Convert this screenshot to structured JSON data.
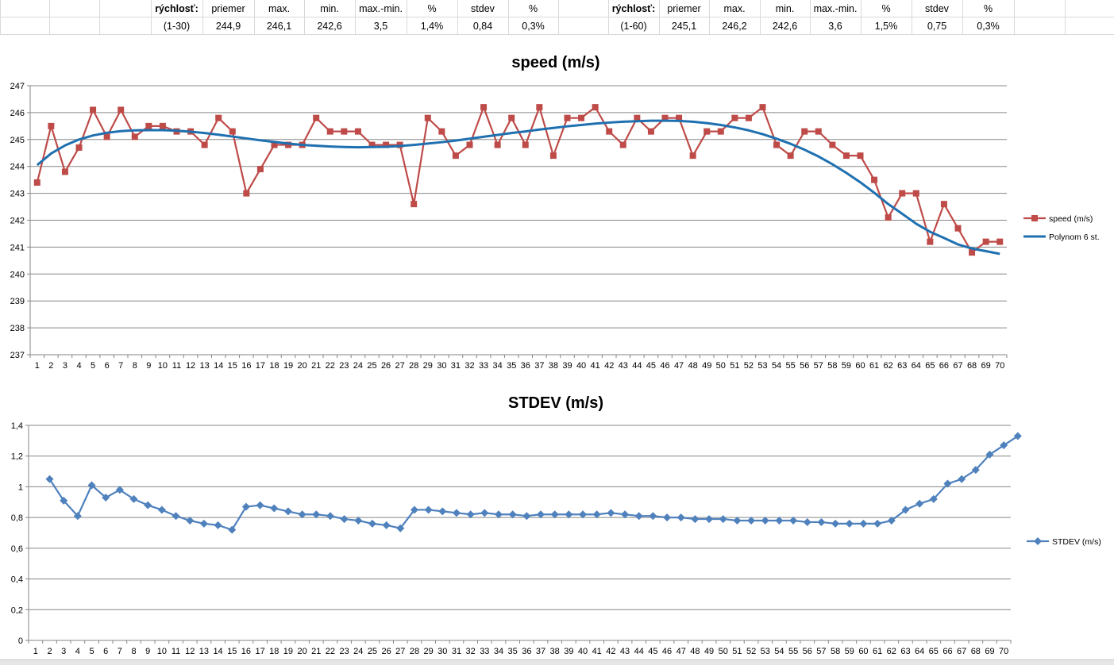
{
  "sheet_rows": [
    [
      "",
      "",
      "",
      "rýchlosť:",
      "priemer",
      "max.",
      "min.",
      "max.-min.",
      "%",
      "stdev",
      "%",
      "",
      "rýchlosť:",
      "priemer",
      "max.",
      "min.",
      "max.-min.",
      "%",
      "stdev",
      "%",
      "",
      ""
    ],
    [
      "",
      "",
      "",
      "(1-30)",
      "244,9",
      "246,1",
      "242,6",
      "3,5",
      "1,4%",
      "0,84",
      "0,3%",
      "",
      "(1-60)",
      "245,1",
      "246,2",
      "242,6",
      "3,6",
      "1,5%",
      "0,75",
      "0,3%",
      "",
      ""
    ]
  ],
  "bold_cells": [
    "rýchlosť:"
  ],
  "chart_data": [
    {
      "type": "line",
      "title": "speed (m/s)",
      "xlabel": "",
      "ylabel": "",
      "categories": [
        1,
        2,
        3,
        4,
        5,
        6,
        7,
        8,
        9,
        10,
        11,
        12,
        13,
        14,
        15,
        16,
        17,
        18,
        19,
        20,
        21,
        22,
        23,
        24,
        25,
        26,
        27,
        28,
        29,
        30,
        31,
        32,
        33,
        34,
        35,
        36,
        37,
        38,
        39,
        40,
        41,
        42,
        43,
        44,
        45,
        46,
        47,
        48,
        49,
        50,
        51,
        52,
        53,
        54,
        55,
        56,
        57,
        58,
        59,
        60,
        61,
        62,
        63,
        64,
        65,
        66,
        67,
        68,
        69,
        70
      ],
      "ylim": [
        237,
        247
      ],
      "yticks": [
        237,
        238,
        239,
        240,
        241,
        242,
        243,
        244,
        245,
        246,
        247
      ],
      "grid": true,
      "legend_position": "right",
      "series": [
        {
          "name": "speed (m/s)",
          "color": "#be4b48",
          "marker": "square",
          "values": [
            243.4,
            245.5,
            243.8,
            244.7,
            246.1,
            245.1,
            246.1,
            245.1,
            245.5,
            245.5,
            245.3,
            245.3,
            244.8,
            245.8,
            245.3,
            243.0,
            243.9,
            244.8,
            244.8,
            244.8,
            245.8,
            245.3,
            245.3,
            245.3,
            244.8,
            244.8,
            244.8,
            242.6,
            245.8,
            245.3,
            244.4,
            244.8,
            246.2,
            244.8,
            245.8,
            244.8,
            246.2,
            244.4,
            245.8,
            245.8,
            246.2,
            245.3,
            244.8,
            245.8,
            245.3,
            245.8,
            245.8,
            244.4,
            245.3,
            245.3,
            245.8,
            245.8,
            246.2,
            244.8,
            244.4,
            245.3,
            245.3,
            244.8,
            244.4,
            244.4,
            243.5,
            242.1,
            243.0,
            243.0,
            241.2,
            242.6,
            241.7,
            240.8,
            241.2,
            241.2
          ]
        },
        {
          "name": "Polynom 6 st.",
          "color": "#1f70b0",
          "marker": "none",
          "values": [
            244.05,
            244.48,
            244.78,
            245.0,
            245.15,
            245.25,
            245.31,
            245.34,
            245.35,
            245.35,
            245.33,
            245.29,
            245.24,
            245.18,
            245.11,
            245.04,
            244.97,
            244.91,
            244.85,
            244.8,
            244.77,
            244.74,
            244.72,
            244.71,
            244.72,
            244.73,
            244.76,
            244.8,
            244.85,
            244.9,
            244.96,
            245.03,
            245.1,
            245.17,
            245.24,
            245.3,
            245.37,
            245.43,
            245.49,
            245.54,
            245.59,
            245.63,
            245.66,
            245.68,
            245.7,
            245.7,
            245.69,
            245.66,
            245.61,
            245.54,
            245.45,
            245.34,
            245.2,
            245.03,
            244.84,
            244.62,
            244.37,
            244.08,
            243.76,
            243.41,
            243.02,
            242.6,
            242.24,
            241.87,
            241.57,
            241.34,
            241.1,
            240.95,
            240.85,
            240.75
          ]
        }
      ]
    },
    {
      "type": "line",
      "title": "STDEV (m/s)",
      "xlabel": "",
      "ylabel": "",
      "categories": [
        1,
        2,
        3,
        4,
        5,
        6,
        7,
        8,
        9,
        10,
        11,
        12,
        13,
        14,
        15,
        16,
        17,
        18,
        19,
        20,
        21,
        22,
        23,
        24,
        25,
        26,
        27,
        28,
        29,
        30,
        31,
        32,
        33,
        34,
        35,
        36,
        37,
        38,
        39,
        40,
        41,
        42,
        43,
        44,
        45,
        46,
        47,
        48,
        49,
        50,
        51,
        52,
        53,
        54,
        55,
        56,
        57,
        58,
        59,
        60,
        61,
        62,
        63,
        64,
        65,
        66,
        67,
        68,
        69,
        70
      ],
      "ylim": [
        0,
        1.4
      ],
      "yticks": [
        "0",
        "0,2",
        "0,4",
        "0,6",
        "0,8",
        "1",
        "1,2",
        "1,4"
      ],
      "grid": true,
      "legend_position": "right",
      "series": [
        {
          "name": "STDEV (m/s)",
          "color": "#4f81bd",
          "marker": "diamond",
          "start_index": 2,
          "values": [
            1.05,
            0.91,
            0.81,
            1.01,
            0.93,
            0.98,
            0.92,
            0.88,
            0.85,
            0.81,
            0.78,
            0.76,
            0.75,
            0.72,
            0.87,
            0.88,
            0.86,
            0.84,
            0.82,
            0.82,
            0.81,
            0.79,
            0.78,
            0.76,
            0.75,
            0.73,
            0.85,
            0.85,
            0.84,
            0.83,
            0.82,
            0.83,
            0.82,
            0.82,
            0.81,
            0.82,
            0.82,
            0.82,
            0.82,
            0.82,
            0.83,
            0.82,
            0.81,
            0.81,
            0.8,
            0.8,
            0.79,
            0.79,
            0.79,
            0.78,
            0.78,
            0.78,
            0.78,
            0.78,
            0.77,
            0.77,
            0.76,
            0.76,
            0.76,
            0.76,
            0.78,
            0.85,
            0.89,
            0.92,
            1.02,
            1.05,
            1.11,
            1.21,
            1.27,
            1.33
          ]
        }
      ]
    }
  ]
}
